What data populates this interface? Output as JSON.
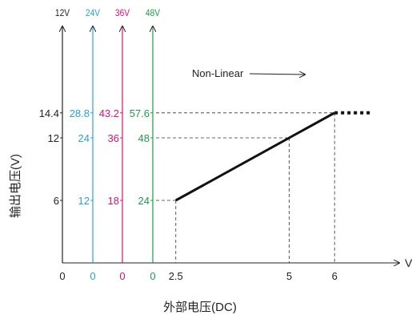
{
  "chart_data": {
    "type": "line",
    "title": "",
    "xlabel": "外部电压(DC)",
    "ylabel": "输出电压(V)",
    "x_unit_label": "V",
    "x_ticks": [
      "0",
      "2.5",
      "5",
      "6"
    ],
    "x_tick_values": [
      0,
      2.5,
      5,
      6
    ],
    "voltage_axes": [
      {
        "name": "12V",
        "color": "#222222",
        "ticks": [
          "6",
          "12",
          "14.4"
        ],
        "tick_values": [
          6,
          12,
          14.4
        ],
        "zero": "0"
      },
      {
        "name": "24V",
        "color": "#29a3d6",
        "ticks": [
          "12",
          "24",
          "28.8"
        ],
        "tick_values": [
          12,
          24,
          28.8
        ],
        "zero": "0"
      },
      {
        "name": "36V",
        "color": "#d6137a",
        "ticks": [
          "18",
          "36",
          "43.2"
        ],
        "tick_values": [
          18,
          36,
          43.2
        ],
        "zero": "0"
      },
      {
        "name": "48V",
        "color": "#1e9b4a",
        "ticks": [
          "24",
          "48",
          "57.6"
        ],
        "tick_values": [
          24,
          48,
          57.6
        ],
        "zero": "0"
      }
    ],
    "series": [
      {
        "x": [
          2.5,
          6
        ],
        "y": [
          6,
          14.4
        ]
      }
    ],
    "continuation": {
      "x": [
        6,
        7.3
      ],
      "y": [
        14.4,
        14.4
      ],
      "style": "dotted"
    },
    "annotation": "Non-Linear",
    "grid": false,
    "xlim": [
      0,
      7.3
    ],
    "ylim": [
      0,
      16.4
    ]
  }
}
